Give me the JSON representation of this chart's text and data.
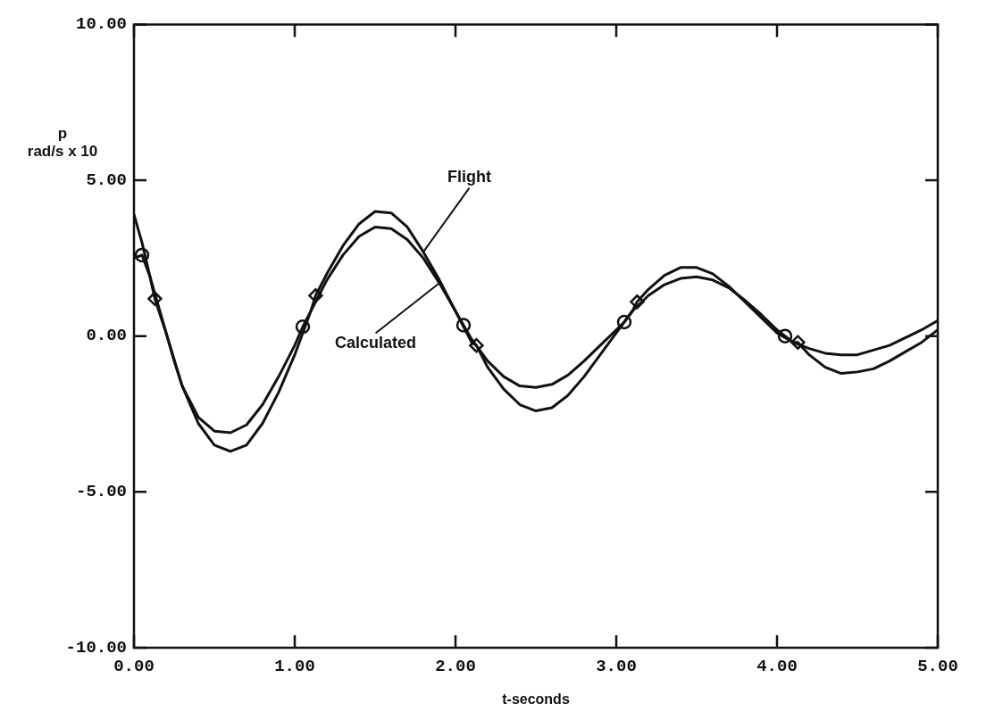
{
  "chart_data": {
    "type": "line",
    "xlabel": "t-seconds",
    "ylabel": "p\nrad/s x 10",
    "xlim": [
      0,
      5
    ],
    "ylim": [
      -10,
      10
    ],
    "xticks": [
      {
        "value": 0,
        "label": "0.00"
      },
      {
        "value": 1,
        "label": "1.00"
      },
      {
        "value": 2,
        "label": "2.00"
      },
      {
        "value": 3,
        "label": "3.00"
      },
      {
        "value": 4,
        "label": "4.00"
      },
      {
        "value": 5,
        "label": "5.00"
      }
    ],
    "yticks": [
      {
        "value": -10,
        "label": "-10.00"
      },
      {
        "value": -5,
        "label": "-5.00"
      },
      {
        "value": 0,
        "label": "0.00"
      },
      {
        "value": 5,
        "label": "5.00"
      },
      {
        "value": 10,
        "label": "10.00"
      }
    ],
    "grid": false,
    "legend": false,
    "series": [
      {
        "name": "Calculated",
        "color": "#111111",
        "marker": "none",
        "x": [
          0,
          0.05,
          0.1,
          0.15,
          0.2,
          0.25,
          0.3,
          0.4,
          0.5,
          0.6,
          0.7,
          0.8,
          0.9,
          1.0,
          1.05,
          1.1,
          1.2,
          1.3,
          1.4,
          1.5,
          1.6,
          1.7,
          1.8,
          1.9,
          2.0,
          2.05,
          2.1,
          2.2,
          2.3,
          2.4,
          2.5,
          2.6,
          2.7,
          2.8,
          2.9,
          3.0,
          3.05,
          3.1,
          3.2,
          3.3,
          3.4,
          3.5,
          3.6,
          3.7,
          3.8,
          3.9,
          4.0,
          4.05,
          4.1,
          4.2,
          4.3,
          4.4,
          4.5,
          4.6,
          4.7,
          4.8,
          4.9,
          5.0
        ],
        "values": [
          2.5,
          2.6,
          1.9,
          1.0,
          0.1,
          -0.8,
          -1.6,
          -2.6,
          -3.05,
          -3.1,
          -2.85,
          -2.2,
          -1.3,
          -0.3,
          0.3,
          0.8,
          1.8,
          2.6,
          3.2,
          3.5,
          3.45,
          3.1,
          2.5,
          1.7,
          0.8,
          0.35,
          -0.1,
          -0.8,
          -1.3,
          -1.6,
          -1.65,
          -1.55,
          -1.25,
          -0.8,
          -0.3,
          0.2,
          0.45,
          0.8,
          1.3,
          1.65,
          1.85,
          1.9,
          1.8,
          1.55,
          1.15,
          0.7,
          0.2,
          0,
          -0.2,
          -0.4,
          -0.55,
          -0.6,
          -0.6,
          -0.45,
          -0.3,
          -0.05,
          0.2,
          0.5
        ]
      },
      {
        "name": "Flight",
        "color": "#111111",
        "marker": "none",
        "x": [
          0,
          0.05,
          0.1,
          0.13,
          0.2,
          0.3,
          0.4,
          0.5,
          0.6,
          0.7,
          0.8,
          0.9,
          1.0,
          1.1,
          1.13,
          1.2,
          1.3,
          1.4,
          1.5,
          1.6,
          1.7,
          1.8,
          1.9,
          2.0,
          2.1,
          2.13,
          2.2,
          2.3,
          2.4,
          2.5,
          2.6,
          2.7,
          2.8,
          2.9,
          3.0,
          3.1,
          3.13,
          3.2,
          3.3,
          3.4,
          3.5,
          3.6,
          3.7,
          3.8,
          3.9,
          4.0,
          4.1,
          4.13,
          4.2,
          4.3,
          4.4,
          4.5,
          4.6,
          4.7,
          4.8,
          4.9,
          5.0
        ],
        "values": [
          3.9,
          3.0,
          1.9,
          1.2,
          0.1,
          -1.6,
          -2.8,
          -3.5,
          -3.7,
          -3.5,
          -2.8,
          -1.8,
          -0.6,
          0.8,
          1.3,
          2.0,
          2.9,
          3.6,
          4.0,
          3.95,
          3.5,
          2.7,
          1.8,
          0.8,
          -0.2,
          -0.3,
          -1.0,
          -1.7,
          -2.2,
          -2.4,
          -2.3,
          -1.9,
          -1.3,
          -0.6,
          0.1,
          0.8,
          1.1,
          1.5,
          1.95,
          2.2,
          2.2,
          2.0,
          1.6,
          1.1,
          0.6,
          0.1,
          -0.2,
          -0.2,
          -0.6,
          -1.0,
          -1.2,
          -1.15,
          -1.05,
          -0.8,
          -0.5,
          -0.2,
          0.2
        ]
      },
      {
        "type": "scatter",
        "color": "#111111",
        "marker": "circle",
        "x": [
          0.05,
          1.05,
          2.05,
          3.05,
          4.05
        ],
        "values": [
          2.6,
          0.3,
          0.35,
          0.45,
          0
        ]
      },
      {
        "type": "scatter",
        "color": "#111111",
        "marker": "diamond",
        "x": [
          0.13,
          1.13,
          2.13,
          3.13,
          4.13
        ],
        "values": [
          1.2,
          1.3,
          -0.3,
          1.1,
          -0.2
        ]
      }
    ]
  }
}
